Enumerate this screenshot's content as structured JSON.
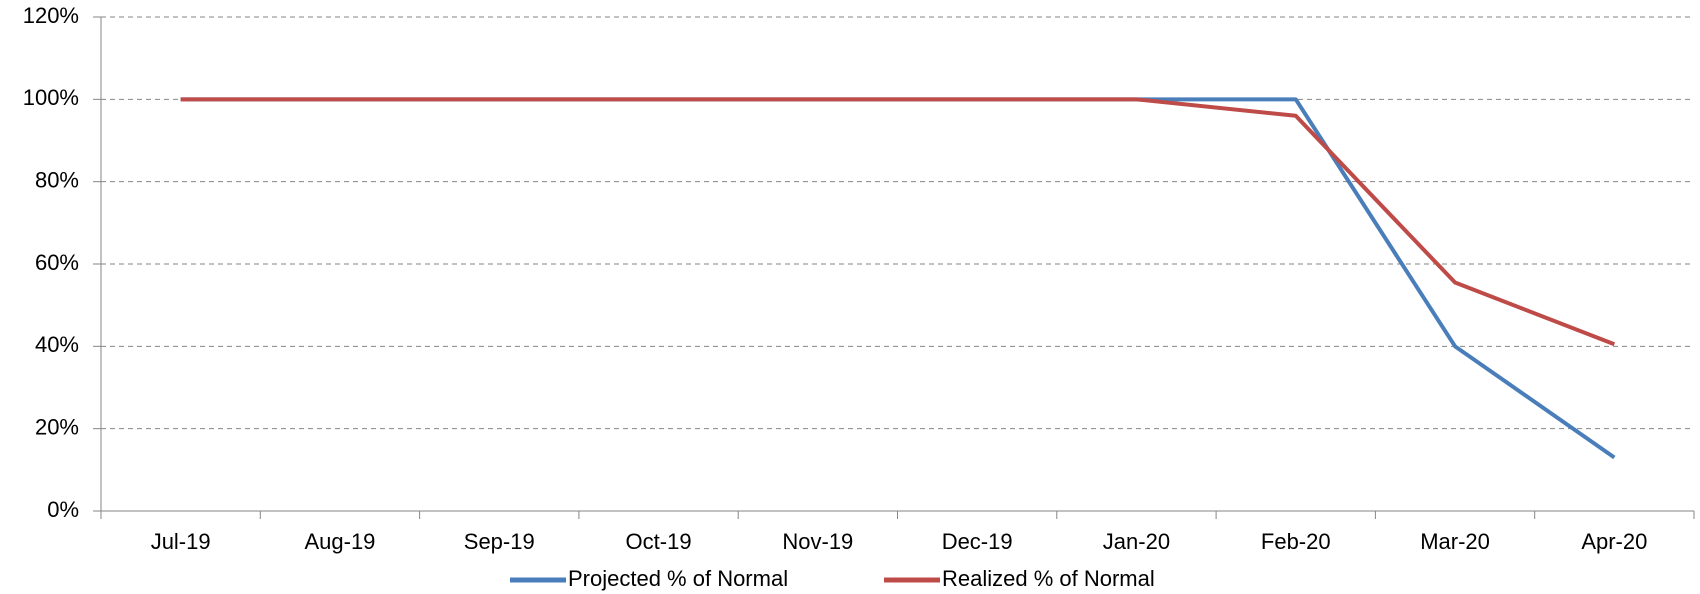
{
  "chart_data": {
    "type": "line",
    "categories": [
      "Jul-19",
      "Aug-19",
      "Sep-19",
      "Oct-19",
      "Nov-19",
      "Dec-19",
      "Jan-20",
      "Feb-20",
      "Mar-20",
      "Apr-20"
    ],
    "series": [
      {
        "name": "Projected % of Normal",
        "color": "#4a7ebb",
        "values": [
          100,
          100,
          100,
          100,
          100,
          100,
          100,
          100,
          40,
          13
        ]
      },
      {
        "name": "Realized % of Normal",
        "color": "#be4b48",
        "values": [
          100,
          100,
          100,
          100,
          100,
          100,
          100,
          96,
          55.5,
          40.5
        ]
      }
    ],
    "ylim": [
      0,
      120
    ],
    "yticks": [
      {
        "value": 0,
        "label": "0%"
      },
      {
        "value": 20,
        "label": "20%"
      },
      {
        "value": 40,
        "label": "40%"
      },
      {
        "value": 60,
        "label": "60%"
      },
      {
        "value": 80,
        "label": "80%"
      },
      {
        "value": 100,
        "label": "100%"
      },
      {
        "value": 120,
        "label": "120%"
      }
    ],
    "grid": true,
    "legend": "bottom"
  }
}
